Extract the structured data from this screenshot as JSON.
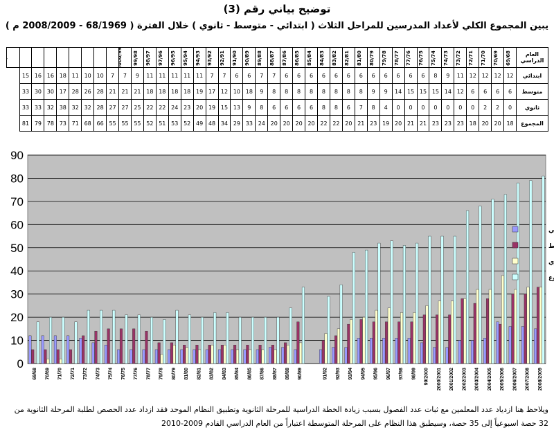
{
  "title": "توضيح بياني رقم (3)",
  "subtitle": "يبين المجموع الكلي لأعداد المدرسين للمراحل الثلاث ( ابتدائي - متوسط - ثانوي ) خلال الفترة ( 68/1969 - 2008/2009 م )",
  "table": {
    "header_label": "العام الدراسي",
    "row_labels": [
      "ابتدائي",
      "متوسط",
      "ثانوي",
      "المجموع"
    ]
  },
  "note": "ويلاحظ هنا ازدياد عدد المعلمين مع ثبات عدد الفصول بسبب زيادة الخطة الدراسية للمرحلة الثانوية وتطبيق النظام الموحد فقد ازداد عدد الحصص لطلبة المرحلة الثانوية من 32 حصة اسبوعياً إلى 35 حصة، وسيطبق هذا النظام على المرحلة المتوسطة اعتباراً من العام الدراسي القادم 2009-2010",
  "colors": {
    "background": "#c0c0c0",
    "ibtidai": "#9999ff",
    "mutawasit": "#993366",
    "thanawi": "#ffffcc",
    "total": "#ccffff"
  },
  "chart_data": {
    "type": "bar",
    "categories": [
      "69/68",
      "70/69",
      "71/70",
      "72/71",
      "73/72",
      "74/73",
      "75/74",
      "76/75",
      "77/76",
      "78/77",
      "79/78",
      "80/79",
      "81/80",
      "82/81",
      "83/82",
      "84/83",
      "85/84",
      "86/85",
      "87/86",
      "88/87",
      "89/88",
      "90/89",
      "91/90",
      "92/91",
      "93/92",
      "94/93",
      "95/94",
      "96/95",
      "97/96",
      "98/97",
      "99/98",
      "2000/99",
      "2001/2000",
      "2002/2001",
      "2003/2002",
      "2004/2003",
      "2005/2004",
      "2006/2005",
      "2007/2006",
      "2008/2007",
      "2009/2008"
    ],
    "chart_categories": [
      "69/68",
      "70/69",
      "71/70",
      "72/71",
      "73/72",
      "74/73",
      "75/74",
      "76/75",
      "77/76",
      "78/77",
      "79/78",
      "80/79",
      "81/80",
      "82/81",
      "83/82",
      "84/83",
      "85/84",
      "86/85",
      "87/86",
      "88/87",
      "89/88",
      "90/89",
      "",
      "91/92",
      "92/93",
      "93/94",
      "94/95",
      "95/96",
      "96/97",
      "97/98",
      "98/99",
      "99/2000",
      "2000/2001",
      "2001/2002",
      "2002/2003",
      "2003/2004",
      "2004/2005",
      "2005/2006",
      "2006/2007",
      "2007/2008",
      "2008/2009"
    ],
    "series": [
      {
        "name": "ابتدائي",
        "values": [
          12,
          12,
          12,
          12,
          11,
          9,
          8,
          6,
          6,
          6,
          6,
          6,
          6,
          6,
          6,
          6,
          6,
          6,
          6,
          7,
          7,
          6,
          0,
          6,
          7,
          7,
          11,
          11,
          11,
          11,
          11,
          9,
          7,
          7,
          10,
          10,
          11,
          18,
          16,
          16,
          15
        ]
      },
      {
        "name": "متوسط",
        "values": [
          6,
          6,
          6,
          6,
          12,
          14,
          15,
          15,
          15,
          14,
          9,
          9,
          8,
          8,
          8,
          8,
          8,
          8,
          8,
          8,
          9,
          18,
          0,
          10,
          12,
          17,
          19,
          18,
          18,
          18,
          18,
          21,
          21,
          21,
          28,
          26,
          28,
          17,
          30,
          30,
          33
        ]
      },
      {
        "name": "ثانوي",
        "values": [
          0,
          2,
          2,
          0,
          0,
          0,
          0,
          0,
          0,
          0,
          4,
          8,
          7,
          6,
          8,
          8,
          6,
          6,
          6,
          6,
          8,
          9,
          0,
          13,
          15,
          19,
          20,
          23,
          24,
          22,
          22,
          25,
          27,
          27,
          28,
          32,
          32,
          38,
          32,
          33,
          33
        ]
      },
      {
        "name": "المجموع",
        "values": [
          18,
          20,
          20,
          18,
          23,
          23,
          23,
          21,
          21,
          20,
          19,
          23,
          21,
          20,
          22,
          22,
          20,
          20,
          20,
          20,
          24,
          33,
          0,
          29,
          34,
          48,
          49,
          52,
          53,
          51,
          52,
          55,
          55,
          55,
          66,
          68,
          71,
          73,
          78,
          79,
          81
        ]
      }
    ],
    "ylim": [
      0,
      90
    ],
    "yticks": [
      0,
      10,
      20,
      30,
      40,
      50,
      60,
      70,
      80,
      90
    ],
    "grid": true,
    "legend_position": "right"
  }
}
